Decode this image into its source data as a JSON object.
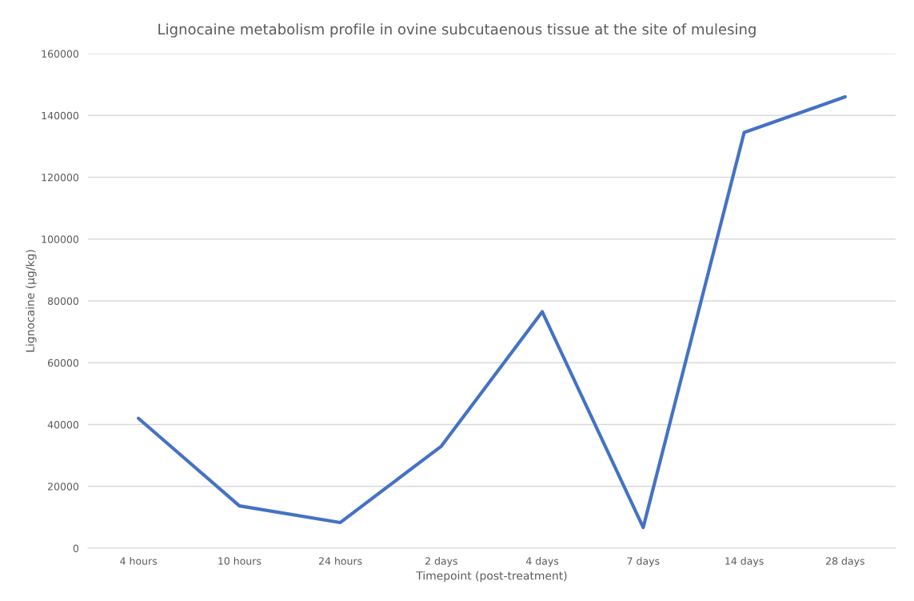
{
  "chart_data": {
    "type": "line",
    "title": "Lignocaine metabolism profile in ovine subcutaenous tissue at the site of mulesing",
    "xlabel": "Timepoint (post-treatment)",
    "ylabel": "Lignocaine (µg/kg)",
    "categories": [
      "4 hours",
      "10 hours",
      "24 hours",
      "2 days",
      "4 days",
      "7 days",
      "14 days",
      "28 days"
    ],
    "series": [
      {
        "color": "#4472c4",
        "values": [
          42000,
          13700,
          8300,
          33000,
          76500,
          6700,
          134500,
          146000
        ]
      }
    ],
    "ylim": [
      0,
      160000
    ],
    "yticks": [
      0,
      20000,
      40000,
      60000,
      80000,
      100000,
      120000,
      140000,
      160000
    ],
    "grid": "y",
    "marker": "none",
    "line_style": "solid"
  }
}
